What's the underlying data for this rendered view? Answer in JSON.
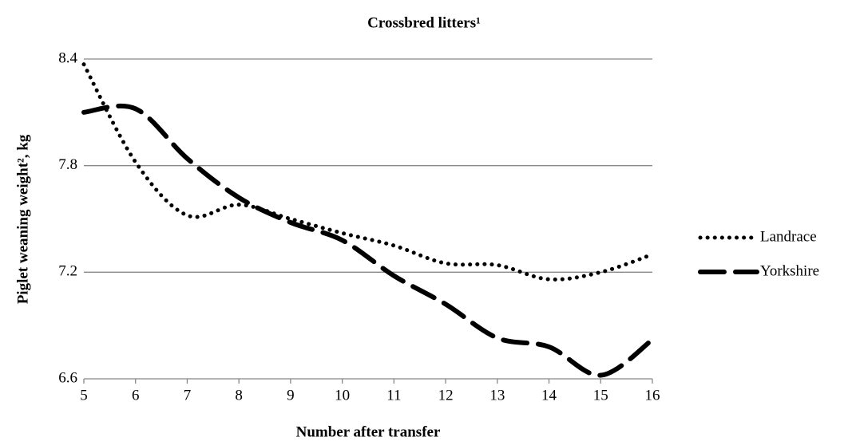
{
  "chart_data": {
    "type": "line",
    "title": "Crossbred litters¹",
    "x_label": "Number after transfer",
    "y_label": "Piglet weaning weight², kg",
    "x": [
      5,
      6,
      7,
      8,
      9,
      10,
      11,
      12,
      13,
      14,
      15,
      16
    ],
    "series": [
      {
        "name": "Landrace",
        "color": "#000000",
        "dash": "dotted",
        "values": [
          8.37,
          7.82,
          7.52,
          7.58,
          7.5,
          7.42,
          7.35,
          7.25,
          7.24,
          7.16,
          7.2,
          7.3
        ]
      },
      {
        "name": "Yorkshire",
        "color": "#000000",
        "dash": "dashed",
        "values": [
          8.1,
          8.12,
          7.84,
          7.62,
          7.48,
          7.38,
          7.18,
          7.02,
          6.83,
          6.78,
          6.62,
          6.82
        ]
      }
    ],
    "xlim": [
      5,
      16
    ],
    "xticks": [
      5,
      6,
      7,
      8,
      9,
      10,
      11,
      12,
      13,
      14,
      15,
      16
    ],
    "ylim": [
      6.6,
      8.4
    ],
    "yticks": [
      6.6,
      7.2,
      7.8,
      8.4
    ],
    "grid": true,
    "legend": "right"
  }
}
